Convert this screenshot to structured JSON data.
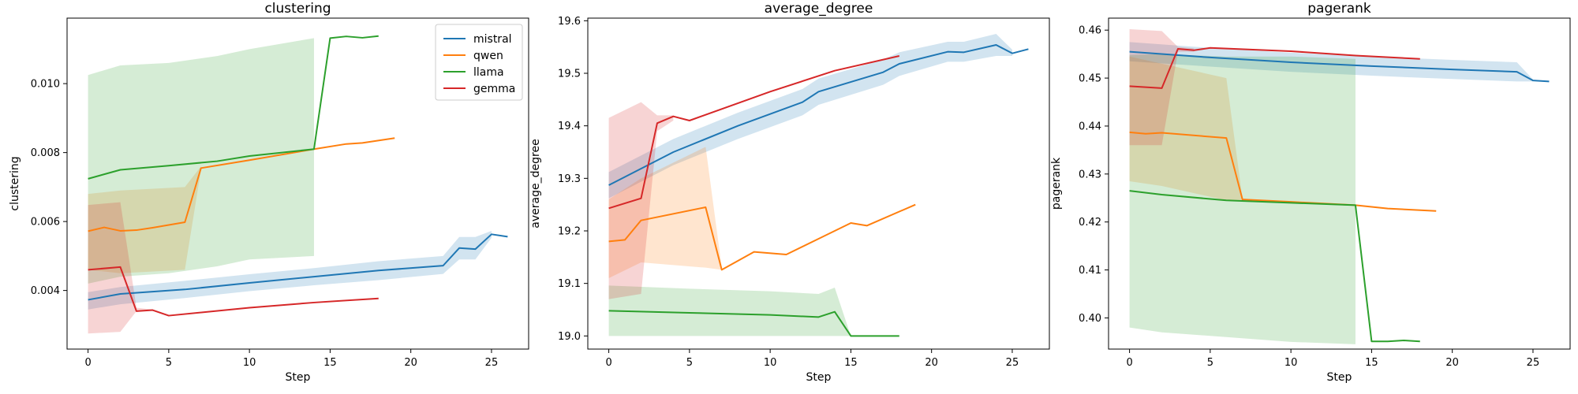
{
  "series_colors": {
    "mistral": "#1f77b4",
    "qwen": "#ff7f0e",
    "llama": "#2ca02c",
    "gemma": "#d62728"
  },
  "chart_data": [
    {
      "type": "line",
      "title": "clustering",
      "xlabel": "Step",
      "ylabel": "clustering",
      "xlim": [
        -1.3,
        27.3
      ],
      "ylim": [
        0.0023,
        0.0119
      ],
      "xticks": [
        0,
        5,
        10,
        15,
        20,
        25
      ],
      "yticks": [
        0.004,
        0.006,
        0.008,
        0.01
      ],
      "ytick_labels": [
        "0.004",
        "0.006",
        "0.008",
        "0.010"
      ],
      "legend": {
        "placement": "top-right",
        "entries": [
          "mistral",
          "qwen",
          "llama",
          "gemma"
        ]
      },
      "series": [
        {
          "name": "mistral",
          "x": [
            0,
            2,
            6,
            10,
            14,
            18,
            22,
            23,
            24,
            25,
            26
          ],
          "y": [
            0.00373,
            0.0039,
            0.00403,
            0.00422,
            0.0044,
            0.00458,
            0.00472,
            0.00523,
            0.0052,
            0.00563,
            0.00556
          ],
          "band": {
            "x": [
              0,
              2,
              6,
              10,
              14,
              18,
              22,
              23,
              24,
              25
            ],
            "lower": [
              0.00345,
              0.0036,
              0.00378,
              0.00398,
              0.00415,
              0.0043,
              0.00448,
              0.0049,
              0.0049,
              0.00553
            ],
            "upper": [
              0.00395,
              0.0041,
              0.00428,
              0.00447,
              0.00465,
              0.00485,
              0.005,
              0.00555,
              0.00555,
              0.00573
            ]
          }
        },
        {
          "name": "qwen",
          "x": [
            0,
            1,
            2,
            3,
            4,
            5,
            6,
            7,
            10,
            14,
            16,
            17,
            19
          ],
          "y": [
            0.00572,
            0.00583,
            0.00573,
            0.00575,
            0.00582,
            0.0059,
            0.00598,
            0.00755,
            0.00778,
            0.0081,
            0.00825,
            0.00828,
            0.00842
          ],
          "band": {
            "x": [
              0,
              2,
              6,
              7
            ],
            "lower": [
              0.0046,
              0.0045,
              0.0046,
              0.0075
            ],
            "upper": [
              0.0068,
              0.0069,
              0.007,
              0.0076
            ]
          }
        },
        {
          "name": "llama",
          "x": [
            0,
            2,
            5,
            8,
            10,
            14,
            15,
            16,
            17,
            18
          ],
          "y": [
            0.00724,
            0.0075,
            0.00762,
            0.00775,
            0.0079,
            0.0081,
            0.01132,
            0.01137,
            0.01133,
            0.01138
          ],
          "band": {
            "x": [
              0,
              2,
              5,
              8,
              10,
              14
            ],
            "lower": [
              0.0042,
              0.0044,
              0.0045,
              0.0047,
              0.0049,
              0.005
            ],
            "upper": [
              0.01025,
              0.01053,
              0.0106,
              0.0108,
              0.011,
              0.01132
            ]
          }
        },
        {
          "name": "gemma",
          "x": [
            0,
            2,
            3,
            4,
            5,
            10,
            14,
            18
          ],
          "y": [
            0.0046,
            0.00468,
            0.0034,
            0.00343,
            0.00327,
            0.0035,
            0.00365,
            0.00377
          ],
          "band": {
            "x": [
              0,
              2,
              3,
              4
            ],
            "lower": [
              0.00275,
              0.0028,
              0.0034,
              0.00342
            ],
            "upper": [
              0.00648,
              0.00656,
              0.0035,
              0.00345
            ]
          }
        }
      ]
    },
    {
      "type": "line",
      "title": "average_degree",
      "xlabel": "Step",
      "ylabel": "average_degree",
      "xlim": [
        -1.3,
        27.3
      ],
      "ylim": [
        18.975,
        19.605
      ],
      "xticks": [
        0,
        5,
        10,
        15,
        20,
        25
      ],
      "yticks": [
        19.0,
        19.1,
        19.2,
        19.3,
        19.4,
        19.5,
        19.6
      ],
      "ytick_labels": [
        "19.0",
        "19.1",
        "19.2",
        "19.3",
        "19.4",
        "19.5",
        "19.6"
      ],
      "legend": null,
      "series": [
        {
          "name": "mistral",
          "x": [
            0,
            4,
            8,
            12,
            13,
            17,
            18,
            21,
            22,
            24,
            25,
            26
          ],
          "y": [
            19.287,
            19.35,
            19.4,
            19.445,
            19.465,
            19.502,
            19.518,
            19.541,
            19.54,
            19.554,
            19.538,
            19.546
          ],
          "band": {
            "x": [
              0,
              4,
              8,
              12,
              13,
              17,
              18,
              21,
              22,
              24,
              25
            ],
            "lower": [
              19.262,
              19.325,
              19.375,
              19.42,
              19.44,
              19.478,
              19.495,
              19.522,
              19.522,
              19.533,
              19.533
            ],
            "upper": [
              19.312,
              19.375,
              19.425,
              19.47,
              19.49,
              19.526,
              19.54,
              19.56,
              19.56,
              19.575,
              19.545
            ]
          }
        },
        {
          "name": "qwen",
          "x": [
            0,
            1,
            2,
            6,
            7,
            9,
            11,
            13,
            15,
            16,
            19
          ],
          "y": [
            19.18,
            19.183,
            19.22,
            19.245,
            19.126,
            19.16,
            19.155,
            19.185,
            19.215,
            19.21,
            19.25
          ],
          "band": {
            "x": [
              0,
              2,
              6,
              7
            ],
            "lower": [
              19.11,
              19.14,
              19.13,
              19.126
            ],
            "upper": [
              19.26,
              19.3,
              19.36,
              19.13
            ]
          }
        },
        {
          "name": "llama",
          "x": [
            0,
            5,
            10,
            13,
            14,
            15,
            18
          ],
          "y": [
            19.048,
            19.044,
            19.04,
            19.036,
            19.046,
            19.0,
            19.0
          ],
          "band": {
            "x": [
              0,
              5,
              10,
              13,
              14,
              15
            ],
            "lower": [
              19.0,
              19.0,
              19.0,
              19.0,
              19.0,
              19.0
            ],
            "upper": [
              19.096,
              19.09,
              19.085,
              19.08,
              19.092,
              19.0
            ]
          }
        },
        {
          "name": "gemma",
          "x": [
            0,
            2,
            3,
            4,
            5,
            10,
            14,
            18
          ],
          "y": [
            19.243,
            19.262,
            19.405,
            19.418,
            19.41,
            19.465,
            19.505,
            19.533
          ],
          "band": {
            "x": [
              0,
              2,
              3,
              4
            ],
            "lower": [
              19.07,
              19.08,
              19.39,
              19.41
            ],
            "upper": [
              19.415,
              19.445,
              19.42,
              19.42
            ]
          }
        }
      ]
    },
    {
      "type": "line",
      "title": "pagerank",
      "xlabel": "Step",
      "ylabel": "pagerank",
      "xlim": [
        -1.3,
        27.3
      ],
      "ylim": [
        0.3935,
        0.4625
      ],
      "xticks": [
        0,
        5,
        10,
        15,
        20,
        25
      ],
      "yticks": [
        0.4,
        0.41,
        0.42,
        0.43,
        0.44,
        0.45,
        0.46
      ],
      "ytick_labels": [
        "0.40",
        "0.41",
        "0.42",
        "0.43",
        "0.44",
        "0.45",
        "0.46"
      ],
      "legend": null,
      "series": [
        {
          "name": "mistral",
          "x": [
            0,
            5,
            10,
            15,
            20,
            24,
            25,
            26
          ],
          "y": [
            0.4555,
            0.4543,
            0.4533,
            0.4525,
            0.4518,
            0.4513,
            0.4495,
            0.4493
          ],
          "band": {
            "x": [
              0,
              5,
              10,
              15,
              20,
              24,
              25
            ],
            "lower": [
              0.4535,
              0.4524,
              0.4513,
              0.4505,
              0.4498,
              0.4493,
              0.4493
            ],
            "upper": [
              0.4575,
              0.4563,
              0.4553,
              0.4545,
              0.4538,
              0.4533,
              0.4497
            ]
          }
        },
        {
          "name": "qwen",
          "x": [
            0,
            1,
            2,
            6,
            7,
            10,
            14,
            16,
            19
          ],
          "y": [
            0.4387,
            0.4384,
            0.4386,
            0.4375,
            0.4247,
            0.4242,
            0.4235,
            0.4228,
            0.4223
          ],
          "band": {
            "x": [
              0,
              2,
              6,
              7
            ],
            "lower": [
              0.4285,
              0.4275,
              0.4245,
              0.4245
            ],
            "upper": [
              0.4545,
              0.453,
              0.45,
              0.4248
            ]
          }
        },
        {
          "name": "llama",
          "x": [
            0,
            2,
            6,
            10,
            14,
            15,
            16,
            17,
            18
          ],
          "y": [
            0.4265,
            0.4257,
            0.4245,
            0.424,
            0.4235,
            0.3951,
            0.3951,
            0.3953,
            0.3951
          ],
          "band": {
            "x": [
              0,
              2,
              6,
              10,
              14
            ],
            "lower": [
              0.398,
              0.397,
              0.396,
              0.395,
              0.3945
            ],
            "upper": [
              0.4548,
              0.455,
              0.4545,
              0.4545,
              0.454
            ]
          }
        },
        {
          "name": "gemma",
          "x": [
            0,
            2,
            3,
            4,
            5,
            10,
            14,
            18
          ],
          "y": [
            0.4483,
            0.4479,
            0.4561,
            0.4558,
            0.4563,
            0.4556,
            0.4547,
            0.454
          ],
          "band": {
            "x": [
              0,
              2,
              3,
              4
            ],
            "lower": [
              0.436,
              0.436,
              0.4555,
              0.4555
            ],
            "upper": [
              0.4602,
              0.4598,
              0.4565,
              0.4562
            ]
          }
        }
      ]
    }
  ]
}
